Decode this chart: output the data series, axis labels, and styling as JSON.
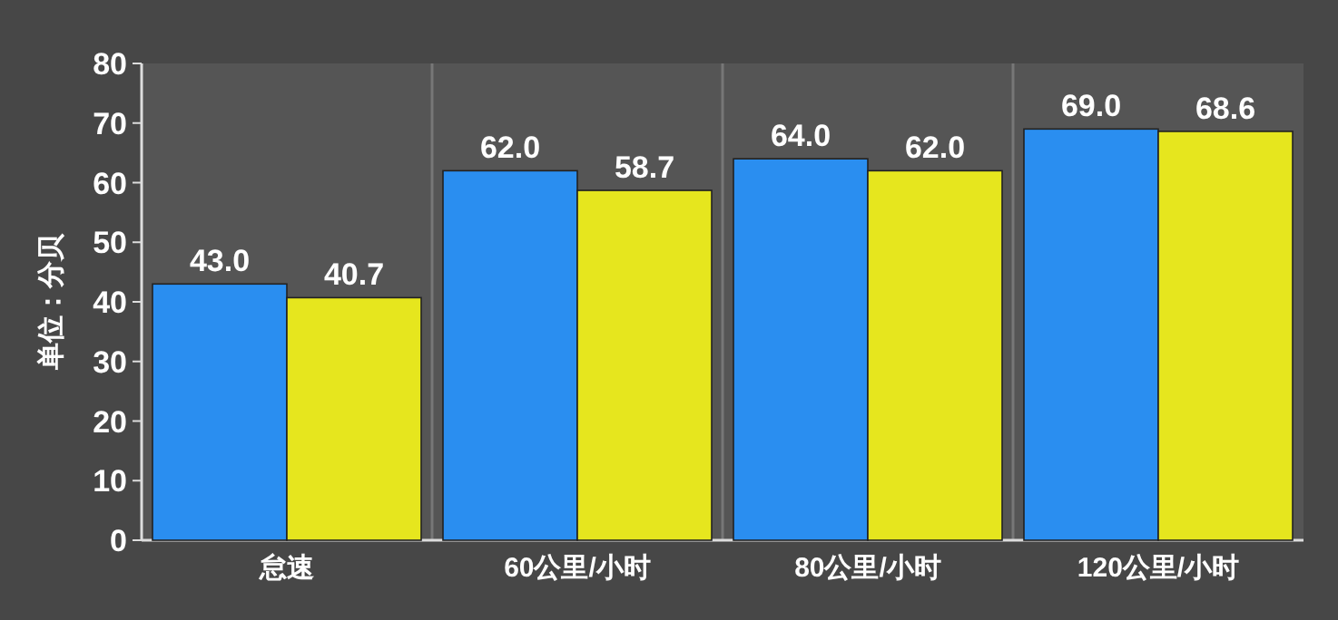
{
  "chart_data": {
    "type": "bar",
    "ylabel": "单位：分贝",
    "categories": [
      "怠速",
      "60公里/小时",
      "80公里/小时",
      "120公里/小时"
    ],
    "series": [
      {
        "color": "#2a8ef0",
        "values": [
          43.0,
          62.0,
          64.0,
          69.0
        ],
        "value_labels": [
          "43.0",
          "62.0",
          "64.0",
          "69.0"
        ]
      },
      {
        "color": "#e6e61e",
        "values": [
          40.7,
          58.7,
          62.0,
          68.6
        ],
        "value_labels": [
          "40.7",
          "58.7",
          "62.0",
          "68.6"
        ]
      }
    ],
    "ylim": [
      0,
      80
    ],
    "yticks": [
      0,
      10,
      20,
      30,
      40,
      50,
      60,
      70,
      80
    ],
    "grid": "x"
  }
}
